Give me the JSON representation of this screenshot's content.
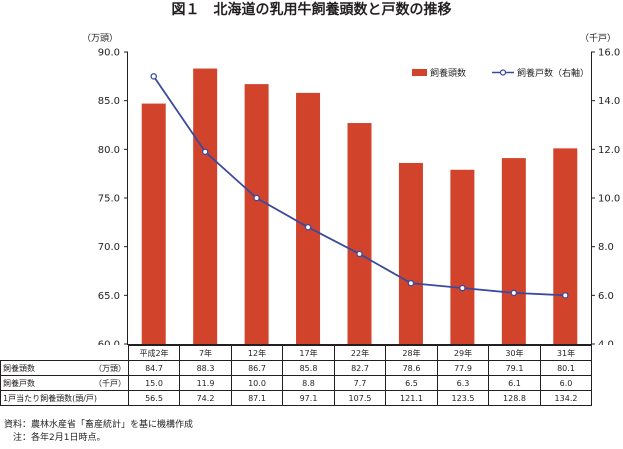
{
  "title": "図１　北海道の乳用牛飼養頭数と戸数の推移",
  "chart_data": {
    "type": "bar+line",
    "categories": [
      "平成2年",
      "7年",
      "12年",
      "17年",
      "22年",
      "28年",
      "29年",
      "30年",
      "31年"
    ],
    "series": [
      {
        "name": "飼養頭数",
        "type": "bar",
        "axis": "left",
        "color": "#d2432b",
        "values": [
          84.7,
          88.3,
          86.7,
          85.8,
          82.7,
          78.6,
          77.9,
          79.1,
          80.1
        ]
      },
      {
        "name": "飼養戸数（右軸）",
        "type": "line",
        "axis": "right",
        "color": "#3c4a9c",
        "values": [
          15.0,
          11.9,
          10.0,
          8.8,
          7.7,
          6.5,
          6.3,
          6.1,
          6.0
        ]
      }
    ],
    "y_left": {
      "unit": "（万頭）",
      "lim": [
        60,
        90
      ],
      "ticks": [
        "60.0",
        "65.0",
        "70.0",
        "75.0",
        "80.0",
        "85.0",
        "90.0"
      ]
    },
    "y_right": {
      "unit": "（千戸）",
      "lim": [
        4,
        16
      ],
      "ticks": [
        "4.0",
        "6.0",
        "8.0",
        "10.0",
        "12.0",
        "14.0",
        "16.0"
      ]
    },
    "legend_position": "top-right",
    "grid": false
  },
  "table": {
    "rows": [
      {
        "label": "飼養頭数",
        "unit": "（万頭）",
        "values": [
          "84.7",
          "88.3",
          "86.7",
          "85.8",
          "82.7",
          "78.6",
          "77.9",
          "79.1",
          "80.1"
        ]
      },
      {
        "label": "飼養戸数",
        "unit": "（千戸）",
        "values": [
          "15.0",
          "11.9",
          "10.0",
          "8.8",
          "7.7",
          "6.5",
          "6.3",
          "6.1",
          "6.0"
        ]
      },
      {
        "label": "1戸当たり飼養頭数(頭/戸)",
        "unit": "",
        "values": [
          "56.5",
          "74.2",
          "87.1",
          "97.1",
          "107.5",
          "121.1",
          "123.5",
          "128.8",
          "134.2"
        ]
      }
    ]
  },
  "notes": {
    "source": "資料：農林水産省「畜産統計」を基に機構作成",
    "note": "注：各年2月1日時点。"
  }
}
